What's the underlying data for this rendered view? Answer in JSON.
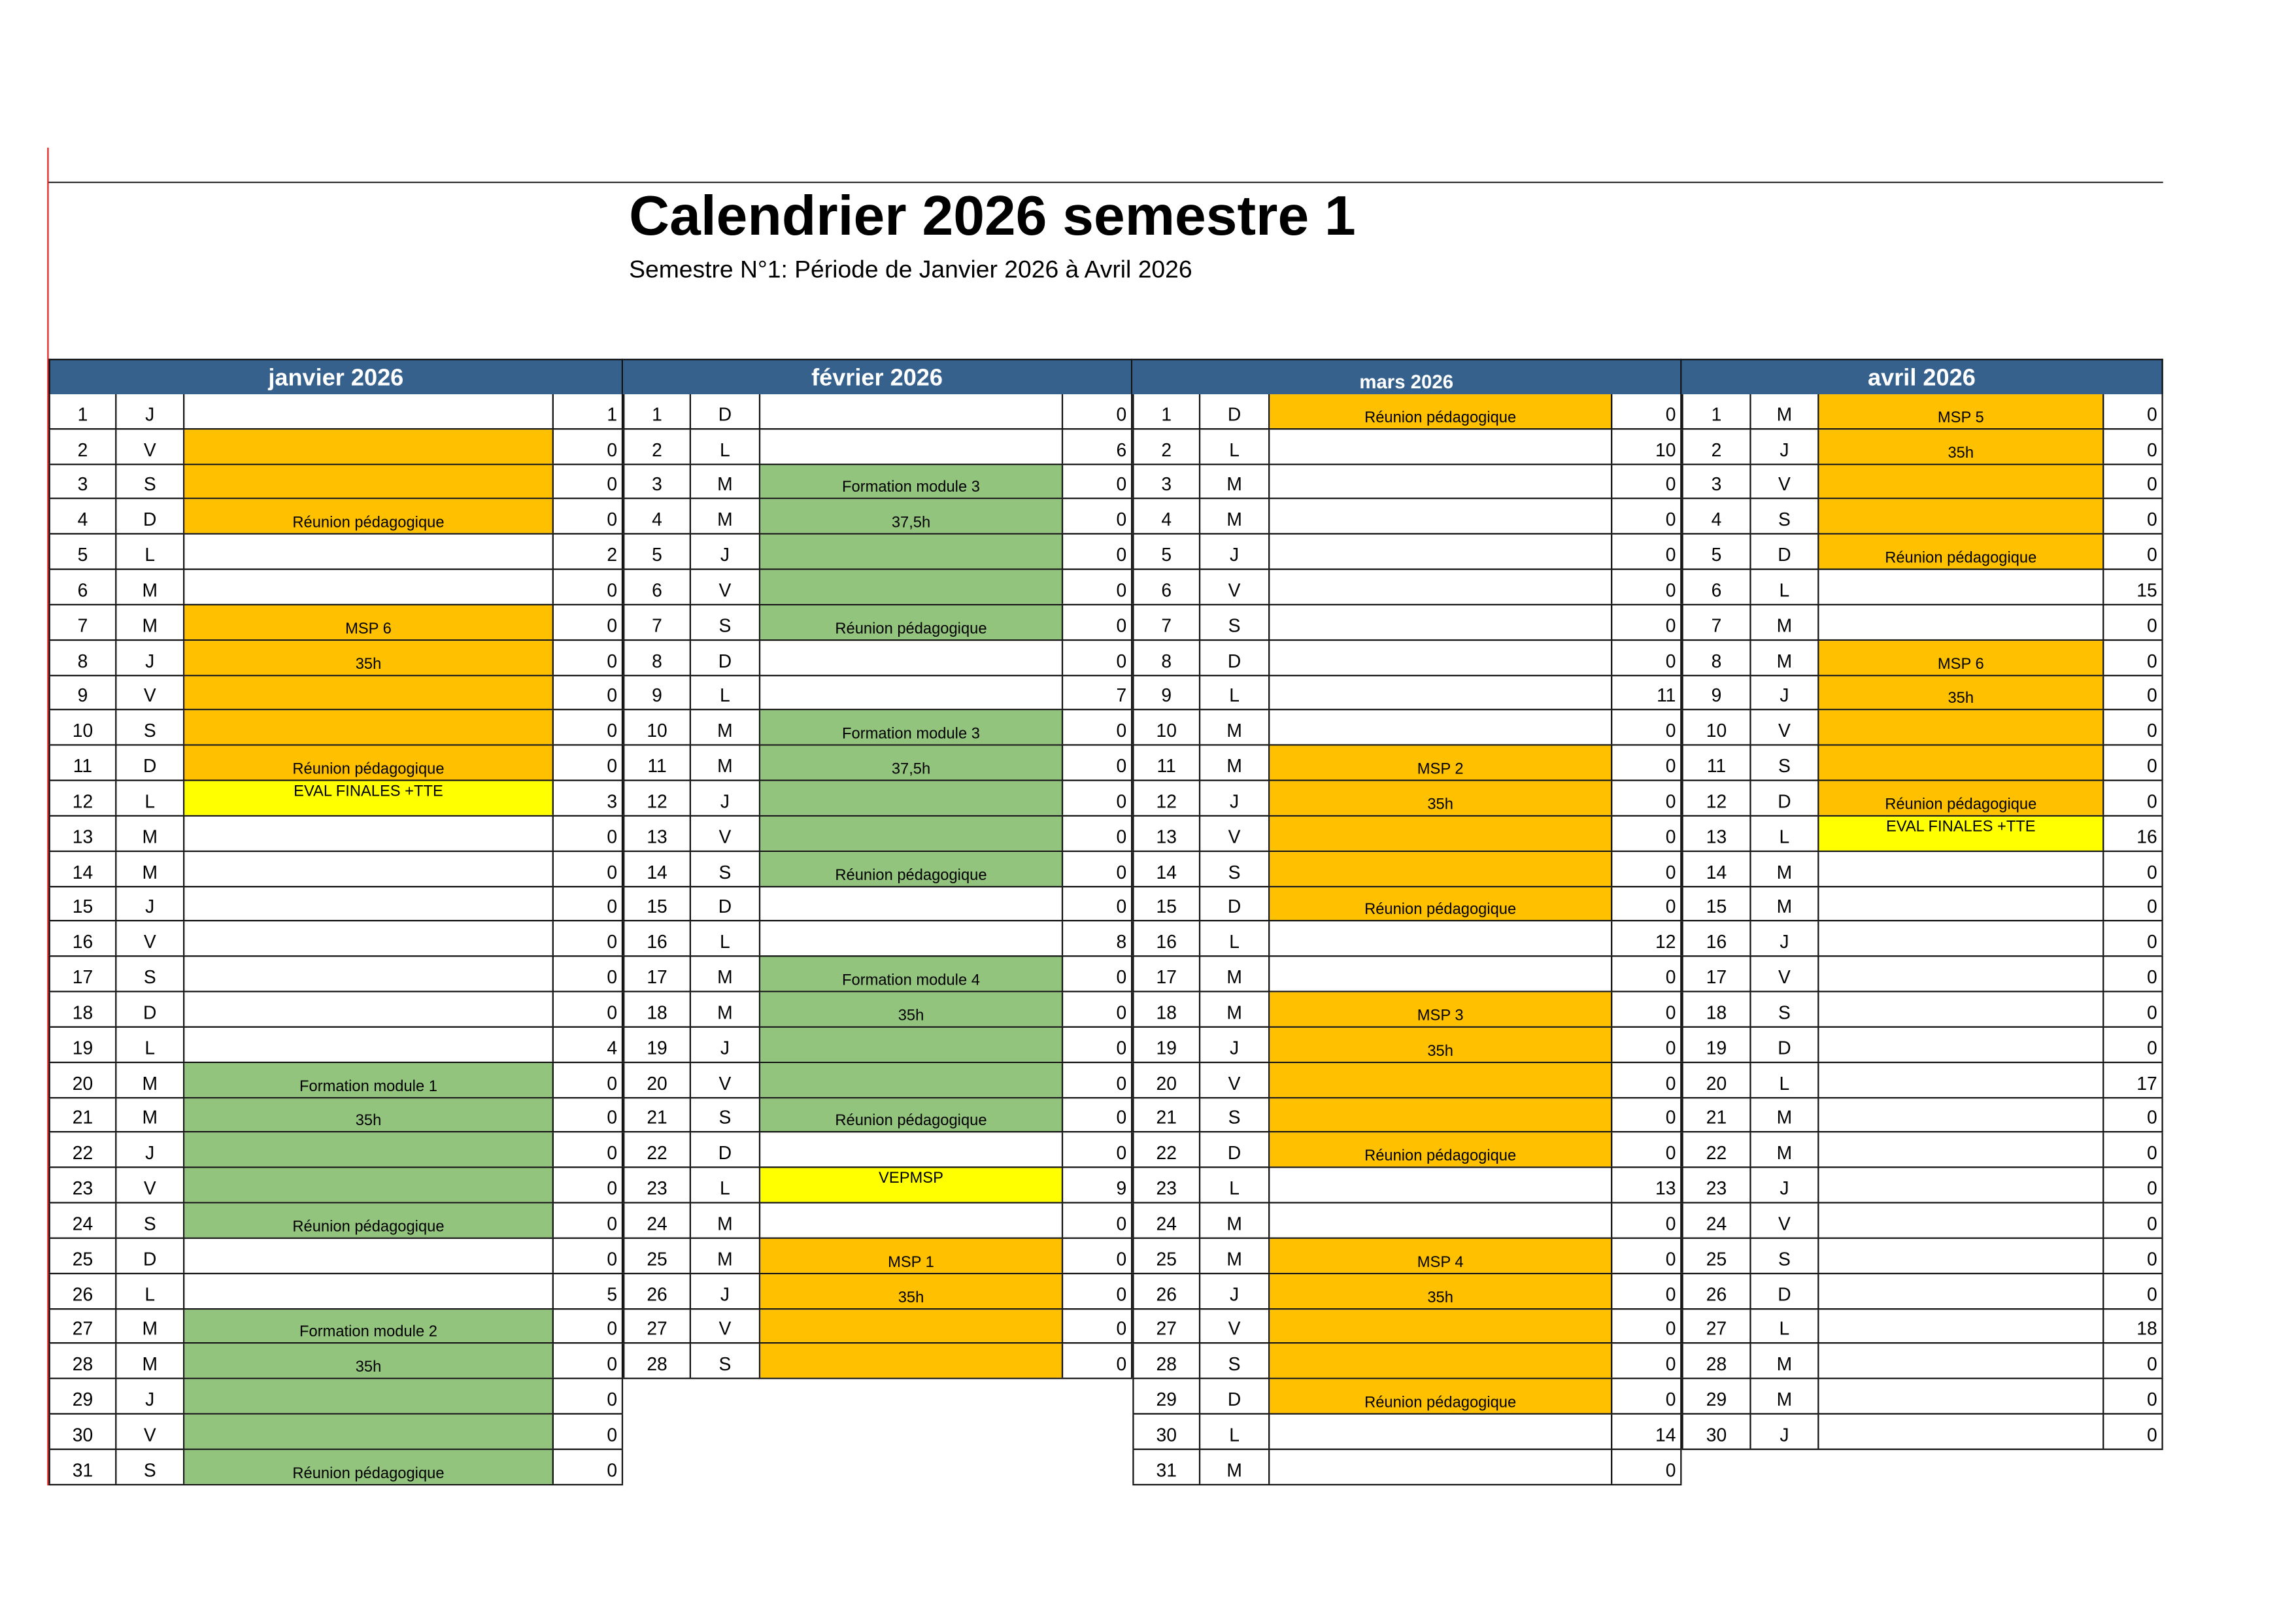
{
  "document": {
    "title": "Calendrier 2026 semestre 1",
    "subtitle": "Semestre N°1: Période de Janvier 2026 à Avril 2026"
  },
  "colors": {
    "header": "#36618d",
    "orange": "#ffc000",
    "green": "#93c47d",
    "yellow": "#ffff00"
  },
  "months": [
    {
      "title": "janvier 2026",
      "rows": [
        [
          1,
          "J",
          "",
          "",
          1
        ],
        [
          2,
          "V",
          "",
          "orange",
          0
        ],
        [
          3,
          "S",
          "",
          "orange",
          0
        ],
        [
          4,
          "D",
          "Réunion pédagogique",
          "orange",
          0
        ],
        [
          5,
          "L",
          "",
          "",
          2
        ],
        [
          6,
          "M",
          "",
          "",
          0
        ],
        [
          7,
          "M",
          "MSP 6",
          "orange",
          0
        ],
        [
          8,
          "J",
          "35h",
          "orange",
          0
        ],
        [
          9,
          "V",
          "",
          "orange",
          0
        ],
        [
          10,
          "S",
          "",
          "orange",
          0
        ],
        [
          11,
          "D",
          "Réunion pédagogique",
          "orange",
          0
        ],
        [
          12,
          "L",
          "EVAL FINALES +TTE",
          "yellow",
          3
        ],
        [
          13,
          "M",
          "",
          "",
          0
        ],
        [
          14,
          "M",
          "",
          "",
          0
        ],
        [
          15,
          "J",
          "",
          "",
          0
        ],
        [
          16,
          "V",
          "",
          "",
          0
        ],
        [
          17,
          "S",
          "",
          "",
          0
        ],
        [
          18,
          "D",
          "",
          "",
          0
        ],
        [
          19,
          "L",
          "",
          "",
          4
        ],
        [
          20,
          "M",
          "Formation module 1",
          "green",
          0
        ],
        [
          21,
          "M",
          "35h",
          "green",
          0
        ],
        [
          22,
          "J",
          "",
          "green",
          0
        ],
        [
          23,
          "V",
          "",
          "green",
          0
        ],
        [
          24,
          "S",
          "Réunion pédagogique",
          "green",
          0
        ],
        [
          25,
          "D",
          "",
          "",
          0
        ],
        [
          26,
          "L",
          "",
          "",
          5
        ],
        [
          27,
          "M",
          "Formation module 2",
          "green",
          0
        ],
        [
          28,
          "M",
          "35h",
          "green",
          0
        ],
        [
          29,
          "J",
          "",
          "green",
          0
        ],
        [
          30,
          "V",
          "",
          "green",
          0
        ],
        [
          31,
          "S",
          "Réunion pédagogique",
          "green",
          0
        ]
      ]
    },
    {
      "title": "février 2026",
      "rows": [
        [
          1,
          "D",
          "",
          "",
          0
        ],
        [
          2,
          "L",
          "",
          "",
          6
        ],
        [
          3,
          "M",
          "Formation module 3",
          "green",
          0
        ],
        [
          4,
          "M",
          "37,5h",
          "green",
          0
        ],
        [
          5,
          "J",
          "",
          "green",
          0
        ],
        [
          6,
          "V",
          "",
          "green",
          0
        ],
        [
          7,
          "S",
          "Réunion pédagogique",
          "green",
          0
        ],
        [
          8,
          "D",
          "",
          "",
          0
        ],
        [
          9,
          "L",
          "",
          "",
          7
        ],
        [
          10,
          "M",
          "Formation module 3",
          "green",
          0
        ],
        [
          11,
          "M",
          "37,5h",
          "green",
          0
        ],
        [
          12,
          "J",
          "",
          "green",
          0
        ],
        [
          13,
          "V",
          "",
          "green",
          0
        ],
        [
          14,
          "S",
          "Réunion pédagogique",
          "green",
          0
        ],
        [
          15,
          "D",
          "",
          "",
          0
        ],
        [
          16,
          "L",
          "",
          "",
          8
        ],
        [
          17,
          "M",
          "Formation module 4",
          "green",
          0
        ],
        [
          18,
          "M",
          "35h",
          "green",
          0
        ],
        [
          19,
          "J",
          "",
          "green",
          0
        ],
        [
          20,
          "V",
          "",
          "green",
          0
        ],
        [
          21,
          "S",
          "Réunion pédagogique",
          "green",
          0
        ],
        [
          22,
          "D",
          "",
          "",
          0
        ],
        [
          23,
          "L",
          "VEPMSP",
          "yellow",
          9
        ],
        [
          24,
          "M",
          "",
          "",
          0
        ],
        [
          25,
          "M",
          "MSP 1",
          "orange",
          0
        ],
        [
          26,
          "J",
          "35h",
          "orange",
          0
        ],
        [
          27,
          "V",
          "",
          "orange",
          0
        ],
        [
          28,
          "S",
          "",
          "orange",
          0
        ]
      ]
    },
    {
      "title": "mars 2026",
      "rows": [
        [
          1,
          "D",
          "Réunion pédagogique",
          "orange",
          0
        ],
        [
          2,
          "L",
          "",
          "",
          10
        ],
        [
          3,
          "M",
          "",
          "",
          0
        ],
        [
          4,
          "M",
          "",
          "",
          0
        ],
        [
          5,
          "J",
          "",
          "",
          0
        ],
        [
          6,
          "V",
          "",
          "",
          0
        ],
        [
          7,
          "S",
          "",
          "",
          0
        ],
        [
          8,
          "D",
          "",
          "",
          0
        ],
        [
          9,
          "L",
          "",
          "",
          11
        ],
        [
          10,
          "M",
          "",
          "",
          0
        ],
        [
          11,
          "M",
          "MSP 2",
          "orange",
          0
        ],
        [
          12,
          "J",
          "35h",
          "orange",
          0
        ],
        [
          13,
          "V",
          "",
          "orange",
          0
        ],
        [
          14,
          "S",
          "",
          "orange",
          0
        ],
        [
          15,
          "D",
          "Réunion pédagogique",
          "orange",
          0
        ],
        [
          16,
          "L",
          "",
          "",
          12
        ],
        [
          17,
          "M",
          "",
          "",
          0
        ],
        [
          18,
          "M",
          "MSP 3",
          "orange",
          0
        ],
        [
          19,
          "J",
          "35h",
          "orange",
          0
        ],
        [
          20,
          "V",
          "",
          "orange",
          0
        ],
        [
          21,
          "S",
          "",
          "orange",
          0
        ],
        [
          22,
          "D",
          "Réunion pédagogique",
          "orange",
          0
        ],
        [
          23,
          "L",
          "",
          "",
          13
        ],
        [
          24,
          "M",
          "",
          "",
          0
        ],
        [
          25,
          "M",
          "MSP 4",
          "orange",
          0
        ],
        [
          26,
          "J",
          "35h",
          "orange",
          0
        ],
        [
          27,
          "V",
          "",
          "orange",
          0
        ],
        [
          28,
          "S",
          "",
          "orange",
          0
        ],
        [
          29,
          "D",
          "Réunion pédagogique",
          "orange",
          0
        ],
        [
          30,
          "L",
          "",
          "",
          14
        ],
        [
          31,
          "M",
          "",
          "",
          0
        ]
      ]
    },
    {
      "title": "avril 2026",
      "rows": [
        [
          1,
          "M",
          "MSP 5",
          "orange",
          0
        ],
        [
          2,
          "J",
          "35h",
          "orange",
          0
        ],
        [
          3,
          "V",
          "",
          "orange",
          0
        ],
        [
          4,
          "S",
          "",
          "orange",
          0
        ],
        [
          5,
          "D",
          "Réunion pédagogique",
          "orange",
          0
        ],
        [
          6,
          "L",
          "",
          "",
          15
        ],
        [
          7,
          "M",
          "",
          "",
          0
        ],
        [
          8,
          "M",
          "MSP 6",
          "orange",
          0
        ],
        [
          9,
          "J",
          "35h",
          "orange",
          0
        ],
        [
          10,
          "V",
          "",
          "orange",
          0
        ],
        [
          11,
          "S",
          "",
          "orange",
          0
        ],
        [
          12,
          "D",
          "Réunion pédagogique",
          "orange",
          0
        ],
        [
          13,
          "L",
          "EVAL FINALES +TTE",
          "yellow",
          16
        ],
        [
          14,
          "M",
          "",
          "",
          0
        ],
        [
          15,
          "M",
          "",
          "",
          0
        ],
        [
          16,
          "J",
          "",
          "",
          0
        ],
        [
          17,
          "V",
          "",
          "",
          0
        ],
        [
          18,
          "S",
          "",
          "",
          0
        ],
        [
          19,
          "D",
          "",
          "",
          0
        ],
        [
          20,
          "L",
          "",
          "",
          17
        ],
        [
          21,
          "M",
          "",
          "",
          0
        ],
        [
          22,
          "M",
          "",
          "",
          0
        ],
        [
          23,
          "J",
          "",
          "",
          0
        ],
        [
          24,
          "V",
          "",
          "",
          0
        ],
        [
          25,
          "S",
          "",
          "",
          0
        ],
        [
          26,
          "D",
          "",
          "",
          0
        ],
        [
          27,
          "L",
          "",
          "",
          18
        ],
        [
          28,
          "M",
          "",
          "",
          0
        ],
        [
          29,
          "M",
          "",
          "",
          0
        ],
        [
          30,
          "J",
          "",
          "",
          0
        ]
      ]
    }
  ]
}
